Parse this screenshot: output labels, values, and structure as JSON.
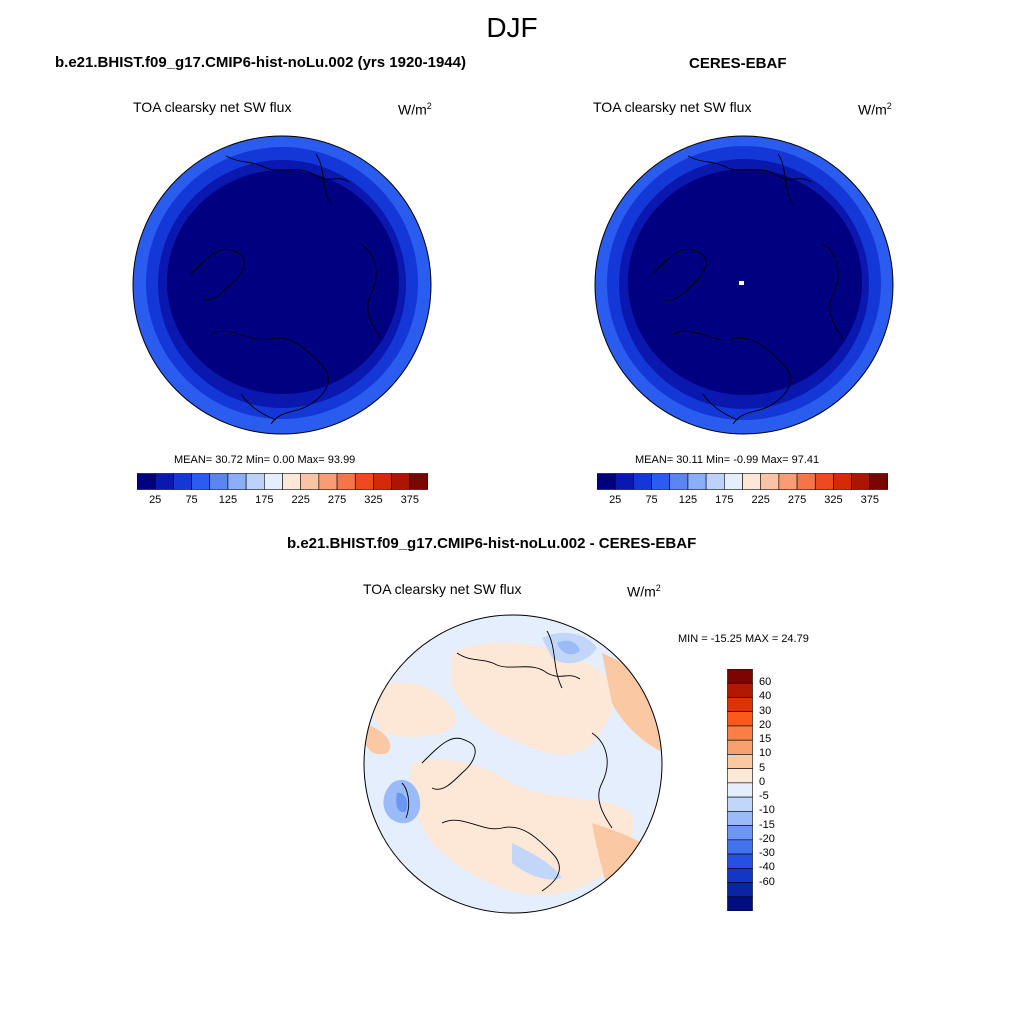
{
  "figure": {
    "title": "DJF"
  },
  "panels": [
    {
      "title": "b.e21.BHIST.f09_g17.CMIP6-hist-noLu.002 (yrs 1920-1944)",
      "variable": "TOA clearsky net SW flux",
      "units_base": "W/m",
      "units_exp": "2",
      "stats": "MEAN=  30.72  Min=   0.00  Max=  93.99"
    },
    {
      "title": "CERES-EBAF",
      "variable": "TOA clearsky net SW flux",
      "units_base": "W/m",
      "units_exp": "2",
      "stats": "MEAN=  30.11  Min=  -0.99  Max=  97.41"
    },
    {
      "title": "b.e21.BHIST.f09_g17.CMIP6-hist-noLu.002 - CERES-EBAF",
      "variable": "TOA clearsky net SW flux",
      "units_base": "W/m",
      "units_exp": "2",
      "stats": "MIN = -15.25 MAX =  24.79"
    }
  ],
  "colorbar_abs": {
    "colors": [
      "#000080",
      "#0a18b0",
      "#1438d8",
      "#2a5cf0",
      "#5a86f5",
      "#8aaef7",
      "#bcd2fa",
      "#e4eefc",
      "#fde8d8",
      "#f9c3a6",
      "#f79c74",
      "#f57448",
      "#ef4a1e",
      "#d42a08",
      "#ac1600",
      "#7a0600"
    ],
    "tick_labels": [
      "25",
      "75",
      "125",
      "175",
      "225",
      "275",
      "325",
      "375"
    ]
  },
  "colorbar_diff": {
    "colors_top_to_bottom": [
      "#7a0600",
      "#b01800",
      "#de3206",
      "#fc5a1a",
      "#fb7e44",
      "#f9a070",
      "#fbc8a4",
      "#fde7d6",
      "#e4eefc",
      "#c2d6fa",
      "#9abaf8",
      "#6d96f4",
      "#4272ee",
      "#2450e4",
      "#1236c6",
      "#0a24a4",
      "#020e80"
    ],
    "tick_labels": [
      "60",
      "40",
      "30",
      "20",
      "15",
      "10",
      "5",
      "0",
      "-5",
      "-10",
      "-15",
      "-20",
      "-30",
      "-40",
      "-60"
    ]
  }
}
